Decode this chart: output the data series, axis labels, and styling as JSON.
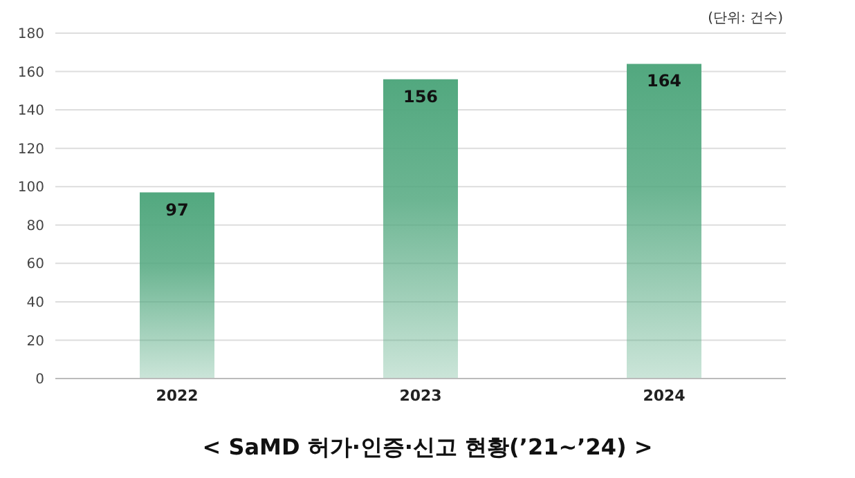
{
  "chart_data": {
    "type": "bar",
    "title": "< SaMD 허가·인증·신고 현황(’21~’24) >",
    "annotations": [
      "(단위: 건수)"
    ],
    "categories": [
      "2022",
      "2023",
      "2024"
    ],
    "values": [
      97,
      156,
      164
    ],
    "color": "#52a87f",
    "ylim": [
      0,
      180
    ],
    "yticks": [
      0,
      20,
      40,
      60,
      80,
      100,
      120,
      140,
      160,
      180
    ],
    "grid": "y",
    "data_labels": true
  }
}
